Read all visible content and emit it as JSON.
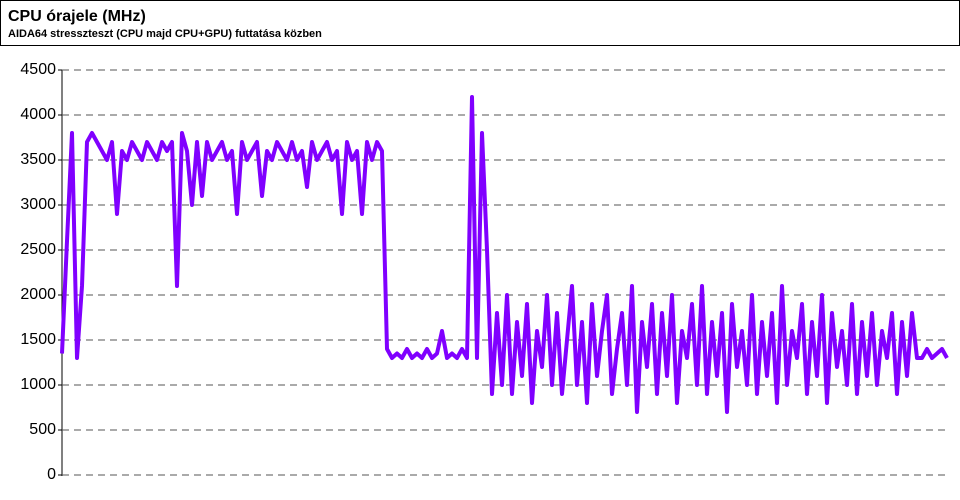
{
  "chart_data": {
    "type": "line",
    "title": "CPU órajele (MHz)",
    "subtitle": "AIDA64 stresszteszt (CPU majd CPU+GPU) futtatása közben",
    "color": "#8000ff",
    "values": [
      1350,
      2600,
      3800,
      1300,
      2100,
      3700,
      3800,
      3700,
      3600,
      3500,
      3700,
      2900,
      3600,
      3500,
      3700,
      3600,
      3500,
      3700,
      3600,
      3500,
      3700,
      3600,
      3700,
      2100,
      3800,
      3600,
      3000,
      3700,
      3100,
      3700,
      3500,
      3600,
      3700,
      3500,
      3600,
      2900,
      3700,
      3500,
      3600,
      3700,
      3100,
      3600,
      3500,
      3700,
      3600,
      3500,
      3700,
      3500,
      3600,
      3200,
      3700,
      3500,
      3600,
      3700,
      3500,
      3600,
      2900,
      3700,
      3500,
      3600,
      2900,
      3700,
      3500,
      3700,
      3600,
      1400,
      1300,
      1350,
      1300,
      1400,
      1300,
      1350,
      1300,
      1400,
      1300,
      1350,
      1600,
      1300,
      1350,
      1300,
      1400,
      1300,
      4200,
      1300,
      3800,
      2500,
      900,
      1800,
      1000,
      2000,
      900,
      1700,
      1100,
      1900,
      800,
      1600,
      1200,
      2000,
      1000,
      1800,
      900,
      1500,
      2100,
      1000,
      1700,
      800,
      1900,
      1100,
      1600,
      2000,
      900,
      1400,
      1800,
      1000,
      2100,
      700,
      1700,
      1200,
      1900,
      900,
      1800,
      1100,
      2000,
      800,
      1600,
      1300,
      1900,
      1000,
      2100,
      900,
      1700,
      1100,
      1800,
      700,
      1900,
      1200,
      1600,
      1000,
      2000,
      900,
      1700,
      1100,
      1800,
      800,
      2100,
      1000,
      1600,
      1300,
      1900,
      900,
      1700,
      1100,
      2000,
      800,
      1800,
      1200,
      1600,
      1000,
      1900,
      900,
      1700,
      1100,
      1800,
      1000,
      1600,
      1300,
      1800,
      900,
      1700,
      1100,
      1800,
      1300,
      1300,
      1400,
      1300,
      1350,
      1400,
      1300
    ],
    "ylim": [
      0,
      4500
    ],
    "yticks": [
      0,
      500,
      1000,
      1500,
      2000,
      2500,
      3000,
      3500,
      4000,
      4500
    ],
    "grid": true
  }
}
